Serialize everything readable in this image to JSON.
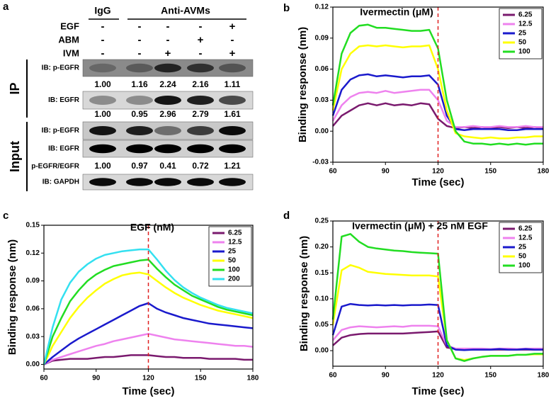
{
  "blot": {
    "panel": "a",
    "groups": [
      "IgG",
      "Anti-AVMs"
    ],
    "treatments": [
      {
        "name": "EGF",
        "marks": [
          "-",
          "-",
          "-",
          "-",
          "+"
        ]
      },
      {
        "name": "ABM",
        "marks": [
          "-",
          "-",
          "-",
          "+",
          "-"
        ]
      },
      {
        "name": "IVM",
        "marks": [
          "-",
          "-",
          "+",
          "-",
          "+"
        ]
      }
    ],
    "ip": {
      "name": "IP",
      "rows": [
        {
          "label": "IB: p-EGFR",
          "quant": [
            "1.00",
            "1.16",
            "2.24",
            "2.16",
            "1.11"
          ]
        },
        {
          "label": "IB: EGFR",
          "quant": [
            "1.00",
            "0.95",
            "2.96",
            "2.79",
            "1.61"
          ]
        }
      ]
    },
    "input": {
      "name": "Input",
      "rows": [
        {
          "label": "IB: p-EGFR"
        },
        {
          "label": "IB: EGFR"
        },
        {
          "label": "IB: GAPDH"
        }
      ],
      "ratio": {
        "label": "p-EGFR/EGFR",
        "quant": [
          "1.00",
          "0.97",
          "0.41",
          "0.72",
          "1.21"
        ]
      }
    }
  },
  "chart_data": [
    {
      "type": "line",
      "panel": "b",
      "title": "Ivermectin (μM)",
      "xlabel": "Time (sec)",
      "ylabel": "Binding response (nm)",
      "x": [
        60,
        65,
        70,
        75,
        80,
        85,
        90,
        95,
        100,
        105,
        110,
        115,
        120,
        125,
        130,
        135,
        140,
        145,
        150,
        155,
        160,
        165,
        170,
        175,
        180
      ],
      "xlim": [
        60,
        180
      ],
      "xticks": [
        60,
        90,
        120,
        150,
        180
      ],
      "ylim": [
        -0.03,
        0.12
      ],
      "yticks": [
        -0.03,
        {
          "value": 0,
          "label": "0.00"
        },
        0.03,
        0.06,
        0.09,
        0.12
      ],
      "vline": 120,
      "legend": "upper right",
      "series": [
        {
          "name": "6.25",
          "color": "#7a1a6e",
          "values": [
            0.005,
            0.015,
            0.02,
            0.025,
            0.027,
            0.025,
            0.027,
            0.025,
            0.026,
            0.025,
            0.027,
            0.026,
            0.012,
            0.005,
            0.003,
            0.004,
            0.003,
            0.004,
            0.003,
            0.004,
            0.003,
            0.004,
            0.003,
            0.004,
            0.003
          ]
        },
        {
          "name": "12.5",
          "color": "#ee82ee",
          "values": [
            0.01,
            0.025,
            0.033,
            0.037,
            0.038,
            0.037,
            0.039,
            0.037,
            0.038,
            0.039,
            0.04,
            0.04,
            0.03,
            0.01,
            0.004,
            0.004,
            0.005,
            0.004,
            0.004,
            0.005,
            0.004,
            0.004,
            0.005,
            0.004,
            0.004
          ]
        },
        {
          "name": "25",
          "color": "#1a1acc",
          "values": [
            0.015,
            0.04,
            0.05,
            0.054,
            0.055,
            0.053,
            0.054,
            0.053,
            0.052,
            0.053,
            0.053,
            0.054,
            0.045,
            0.015,
            0.002,
            0.001,
            0.002,
            0.002,
            0.002,
            0.002,
            0.001,
            0.001,
            0.002,
            0.002,
            0.002
          ]
        },
        {
          "name": "50",
          "color": "#ffff00",
          "values": [
            0.02,
            0.06,
            0.075,
            0.082,
            0.083,
            0.082,
            0.083,
            0.082,
            0.081,
            0.082,
            0.082,
            0.083,
            0.06,
            0.02,
            -0.002,
            -0.005,
            -0.006,
            -0.007,
            -0.006,
            -0.007,
            -0.007,
            -0.006,
            -0.006,
            -0.005,
            -0.005
          ]
        },
        {
          "name": "100",
          "color": "#22dd22",
          "values": [
            0.025,
            0.075,
            0.095,
            0.102,
            0.103,
            0.1,
            0.1,
            0.099,
            0.098,
            0.097,
            0.097,
            0.098,
            0.08,
            0.03,
            0,
            -0.01,
            -0.012,
            -0.012,
            -0.013,
            -0.012,
            -0.013,
            -0.012,
            -0.013,
            -0.012,
            -0.012
          ]
        }
      ]
    },
    {
      "type": "line",
      "panel": "c",
      "title": "EGF (nM)",
      "xlabel": "Time (sec)",
      "ylabel": "Binding response (nm)",
      "x": [
        60,
        65,
        70,
        75,
        80,
        85,
        90,
        95,
        100,
        105,
        110,
        115,
        120,
        125,
        130,
        135,
        140,
        145,
        150,
        155,
        160,
        165,
        170,
        175,
        180
      ],
      "xlim": [
        60,
        180
      ],
      "xticks": [
        60,
        90,
        120,
        150,
        180
      ],
      "ylim": [
        -0.005,
        0.15
      ],
      "yticks": [
        {
          "value": 0,
          "label": "0.00"
        },
        0.03,
        0.06,
        0.09,
        0.12,
        0.15
      ],
      "vline": 120,
      "legend": "upper right",
      "series": [
        {
          "name": "6.25",
          "color": "#7a1a6e",
          "values": [
            0,
            0.004,
            0.005,
            0.006,
            0.006,
            0.006,
            0.007,
            0.008,
            0.008,
            0.009,
            0.01,
            0.01,
            0.01,
            0.009,
            0.008,
            0.008,
            0.007,
            0.007,
            0.007,
            0.006,
            0.006,
            0.006,
            0.006,
            0.005,
            0.005
          ]
        },
        {
          "name": "12.5",
          "color": "#ee82ee",
          "values": [
            0,
            0.005,
            0.008,
            0.011,
            0.014,
            0.017,
            0.02,
            0.022,
            0.025,
            0.027,
            0.029,
            0.031,
            0.033,
            0.031,
            0.029,
            0.027,
            0.026,
            0.025,
            0.024,
            0.023,
            0.022,
            0.021,
            0.02,
            0.02,
            0.019
          ]
        },
        {
          "name": "25",
          "color": "#1a1acc",
          "values": [
            0,
            0.008,
            0.015,
            0.022,
            0.028,
            0.033,
            0.038,
            0.043,
            0.048,
            0.053,
            0.058,
            0.063,
            0.066,
            0.06,
            0.056,
            0.053,
            0.05,
            0.048,
            0.046,
            0.044,
            0.043,
            0.042,
            0.041,
            0.04,
            0.039
          ]
        },
        {
          "name": "50",
          "color": "#ffff00",
          "values": [
            0,
            0.02,
            0.035,
            0.05,
            0.062,
            0.072,
            0.08,
            0.087,
            0.092,
            0.096,
            0.098,
            0.099,
            0.097,
            0.09,
            0.083,
            0.077,
            0.072,
            0.068,
            0.064,
            0.061,
            0.058,
            0.056,
            0.054,
            0.052,
            0.05
          ]
        },
        {
          "name": "100",
          "color": "#22dd22",
          "values": [
            0,
            0.03,
            0.05,
            0.068,
            0.08,
            0.09,
            0.097,
            0.102,
            0.106,
            0.108,
            0.11,
            0.112,
            0.113,
            0.103,
            0.094,
            0.086,
            0.08,
            0.074,
            0.07,
            0.066,
            0.062,
            0.059,
            0.057,
            0.055,
            0.053
          ]
        },
        {
          "name": "200",
          "color": "#33e0f0",
          "values": [
            0,
            0.04,
            0.07,
            0.088,
            0.1,
            0.108,
            0.114,
            0.118,
            0.12,
            0.122,
            0.123,
            0.124,
            0.124,
            0.113,
            0.101,
            0.091,
            0.083,
            0.077,
            0.072,
            0.068,
            0.064,
            0.061,
            0.059,
            0.057,
            0.055
          ]
        }
      ]
    },
    {
      "type": "line",
      "panel": "d",
      "title": "Ivermectin (μM) + 25 nM EGF",
      "xlabel": "Time (sec)",
      "ylabel": "Binding response (nm)",
      "x": [
        60,
        65,
        70,
        75,
        80,
        85,
        90,
        95,
        100,
        105,
        110,
        115,
        120,
        125,
        130,
        135,
        140,
        145,
        150,
        155,
        160,
        165,
        170,
        175,
        180
      ],
      "xlim": [
        60,
        180
      ],
      "xticks": [
        60,
        90,
        120,
        150,
        180
      ],
      "ylim": [
        -0.03,
        0.25
      ],
      "yticks": [
        {
          "value": 0,
          "label": "0.00"
        },
        0.05,
        {
          "value": 0.1,
          "label": "0.10"
        },
        0.15,
        {
          "value": 0.2,
          "label": "0.20"
        },
        0.25
      ],
      "vline": 120,
      "legend": "upper right",
      "series": [
        {
          "name": "6.25",
          "color": "#7a1a6e",
          "values": [
            0.01,
            0.025,
            0.03,
            0.032,
            0.033,
            0.033,
            0.033,
            0.033,
            0.033,
            0.034,
            0.035,
            0.036,
            0.037,
            0.006,
            0.003,
            0.002,
            0.002,
            0.002,
            0.002,
            0.002,
            0.002,
            0.002,
            0.002,
            0.002,
            0.002
          ]
        },
        {
          "name": "12.5",
          "color": "#ee82ee",
          "values": [
            0.02,
            0.04,
            0.045,
            0.047,
            0.046,
            0.045,
            0.046,
            0.047,
            0.046,
            0.048,
            0.048,
            0.048,
            0.047,
            0.01,
            0.004,
            0.004,
            0.004,
            0.004,
            0.003,
            0.004,
            0.004,
            0.003,
            0.004,
            0.004,
            0.004
          ]
        },
        {
          "name": "25",
          "color": "#1a1acc",
          "values": [
            0.03,
            0.085,
            0.09,
            0.088,
            0.087,
            0.088,
            0.087,
            0.088,
            0.087,
            0.088,
            0.088,
            0.089,
            0.088,
            0.01,
            0.002,
            0.001,
            0.002,
            0.002,
            0.002,
            0.003,
            0.002,
            0.002,
            0.003,
            0.002,
            0.002
          ]
        },
        {
          "name": "50",
          "color": "#ffff00",
          "values": [
            0.05,
            0.155,
            0.165,
            0.16,
            0.152,
            0.15,
            0.148,
            0.147,
            0.146,
            0.145,
            0.145,
            0.145,
            0.143,
            0.02,
            -0.015,
            -0.018,
            -0.015,
            -0.012,
            -0.01,
            -0.01,
            -0.01,
            -0.008,
            -0.008,
            -0.007,
            -0.007
          ]
        },
        {
          "name": "100",
          "color": "#22dd22",
          "values": [
            0.06,
            0.22,
            0.225,
            0.21,
            0.2,
            0.197,
            0.195,
            0.193,
            0.192,
            0.19,
            0.189,
            0.188,
            0.187,
            0.02,
            -0.015,
            -0.02,
            -0.015,
            -0.012,
            -0.01,
            -0.01,
            -0.01,
            -0.008,
            -0.008,
            -0.006,
            -0.006
          ]
        }
      ]
    }
  ]
}
